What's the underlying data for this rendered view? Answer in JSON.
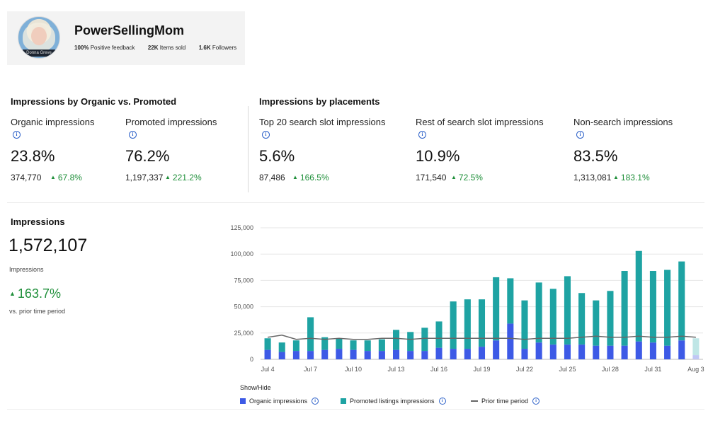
{
  "profile": {
    "name": "PowerSellingMom",
    "avatar_badge": "Donna Greve",
    "feedback_value": "100%",
    "feedback_label": "Positive feedback",
    "items_value": "22K",
    "items_label": "Items sold",
    "followers_value": "1.6K",
    "followers_label": "Followers"
  },
  "organic_vs_promoted": {
    "title": "Impressions by Organic vs. Promoted",
    "metrics": [
      {
        "label": "Organic impressions",
        "percent": "23.8%",
        "count": "374,770",
        "change": "67.8%"
      },
      {
        "label": "Promoted impressions",
        "percent": "76.2%",
        "count": "1,197,337",
        "change": "221.2%"
      }
    ]
  },
  "placements": {
    "title": "Impressions by placements",
    "metrics": [
      {
        "label": "Top 20 search slot impressions",
        "percent": "5.6%",
        "count": "87,486",
        "change": "166.5%"
      },
      {
        "label": "Rest of search slot impressions",
        "percent": "10.9%",
        "count": "171,540",
        "change": "72.5%"
      },
      {
        "label": "Non-search impressions",
        "percent": "83.5%",
        "count": "1,313,081",
        "change": "183.1%"
      }
    ]
  },
  "impressions": {
    "title": "Impressions",
    "total": "1,572,107",
    "subtitle": "Impressions",
    "change": "163.7%",
    "comparison": "vs. prior time period"
  },
  "icons": {
    "info": "info-icon",
    "up": "triangle-up-icon"
  },
  "colors": {
    "organic": "#3d5ae6",
    "promoted": "#1ea3a3",
    "prior": "#666666",
    "positive": "#1f8f3a",
    "info": "#2d61c9"
  },
  "legend": {
    "title": "Show/Hide",
    "organic": "Organic impressions",
    "promoted": "Promoted listings impressions",
    "prior": "Prior time period"
  },
  "chart_data": {
    "type": "bar",
    "stacked": true,
    "ylim": [
      0,
      125000
    ],
    "yticks": [
      0,
      25000,
      50000,
      75000,
      100000,
      125000
    ],
    "ytick_labels": [
      "0",
      "25,000",
      "50,000",
      "75,000",
      "100,000",
      "125,000"
    ],
    "categories": [
      "Jul 4",
      "Jul 5",
      "Jul 6",
      "Jul 7",
      "Jul 8",
      "Jul 9",
      "Jul 10",
      "Jul 11",
      "Jul 12",
      "Jul 13",
      "Jul 14",
      "Jul 15",
      "Jul 16",
      "Jul 17",
      "Jul 18",
      "Jul 19",
      "Jul 20",
      "Jul 21",
      "Jul 22",
      "Jul 23",
      "Jul 24",
      "Jul 25",
      "Jul 26",
      "Jul 27",
      "Jul 28",
      "Jul 29",
      "Jul 30",
      "Jul 31",
      "Aug 1",
      "Aug 2",
      "Aug 3"
    ],
    "xtick_labels": {
      "Jul 4": "Jul 4",
      "Jul 7": "Jul 7",
      "Jul 10": "Jul 10",
      "Jul 13": "Jul 13",
      "Jul 16": "Jul 16",
      "Jul 19": "Jul 19",
      "Jul 22": "Jul 22",
      "Jul 25": "Jul 25",
      "Jul 28": "Jul 28",
      "Jul 31": "Jul 31",
      "Aug 3": "Aug 3"
    },
    "series": [
      {
        "name": "Organic impressions",
        "values": [
          9000,
          7000,
          8000,
          8000,
          9000,
          10000,
          9000,
          8000,
          8000,
          9000,
          8000,
          8000,
          11000,
          10000,
          10000,
          12000,
          18000,
          34000,
          10000,
          16000,
          14000,
          14000,
          14000,
          13000,
          13000,
          13000,
          17000,
          16000,
          13000,
          18000,
          4000
        ]
      },
      {
        "name": "Promoted listings impressions",
        "values": [
          11000,
          9000,
          10000,
          32000,
          12000,
          10000,
          9000,
          10000,
          11000,
          19000,
          18000,
          22000,
          25000,
          45000,
          47000,
          45000,
          60000,
          43000,
          46000,
          57000,
          53000,
          65000,
          49000,
          43000,
          52000,
          71000,
          86000,
          68000,
          72000,
          75000,
          16000
        ]
      },
      {
        "name": "Prior time period",
        "type": "line",
        "values": [
          21000,
          23000,
          19000,
          20000,
          19000,
          20000,
          19000,
          19000,
          20000,
          20000,
          19000,
          20000,
          20000,
          20000,
          20000,
          20000,
          20000,
          20000,
          19000,
          20000,
          20000,
          20000,
          21000,
          22000,
          21000,
          21000,
          22000,
          21000,
          21000,
          22000,
          21000
        ]
      }
    ]
  }
}
